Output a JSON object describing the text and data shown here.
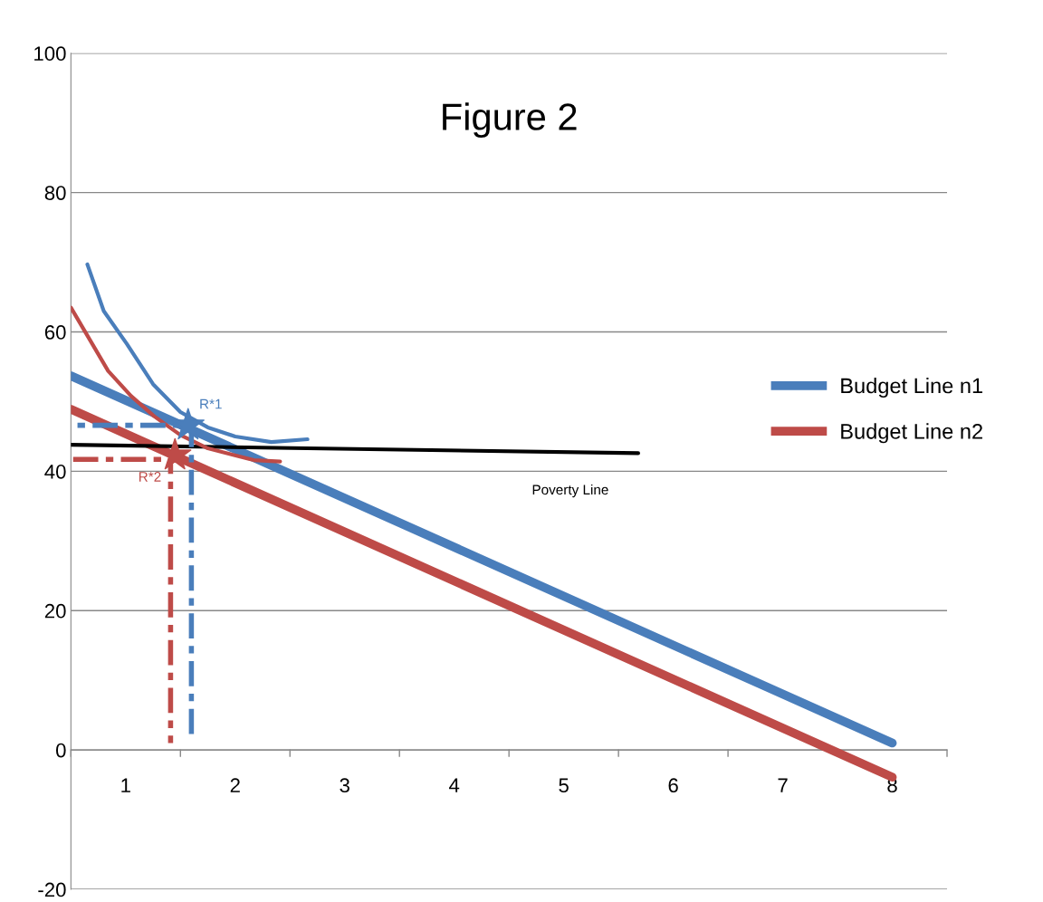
{
  "chart_data": {
    "type": "line",
    "title": "Figure 2",
    "series": [
      {
        "name": "Budget Line n1",
        "color": "#4a7ebb",
        "x": [
          0.5,
          8
        ],
        "values": [
          53.7,
          1.0
        ]
      },
      {
        "name": "Budget Line n2",
        "color": "#be4b48",
        "x": [
          0.5,
          8
        ],
        "values": [
          48.9,
          -3.9
        ]
      },
      {
        "color": "#000000",
        "x": [
          0.5,
          5.68
        ],
        "values": [
          43.8,
          42.6
        ]
      },
      {
        "color": "#4a7ebb",
        "x": [
          0.65,
          0.8,
          1.01,
          1.25,
          1.5,
          1.75,
          2.0,
          2.33,
          2.66
        ],
        "values": [
          69.7,
          63.0,
          58.3,
          52.5,
          48.5,
          46.3,
          45.0,
          44.2,
          44.6
        ]
      },
      {
        "color": "#be4b48",
        "x": [
          0.5,
          0.84,
          1.05,
          1.26,
          1.5,
          1.75,
          2.17,
          2.41
        ],
        "values": [
          63.5,
          54.4,
          50.8,
          47.9,
          45.2,
          43.3,
          41.6,
          41.4
        ]
      },
      {
        "color": "#4a7ebb",
        "line_style": "dashed",
        "x": [
          1.6,
          1.6,
          1.57,
          0.5
        ],
        "values": [
          2.3,
          46.6,
          46.6,
          46.6
        ]
      },
      {
        "color": "#be4b48",
        "line_style": "dashed",
        "x": [
          0.52,
          1.45,
          1.41,
          1.41
        ],
        "values": [
          41.7,
          41.7,
          41.7,
          1.0
        ]
      },
      {
        "type": "scatter",
        "marker": "star",
        "color": "#4a7ebb",
        "x": [
          1.57
        ],
        "values": [
          46.6
        ]
      },
      {
        "type": "scatter",
        "marker": "star",
        "color": "#be4b48",
        "x": [
          1.45
        ],
        "values": [
          42.3
        ]
      }
    ],
    "annotations": [
      {
        "text": "R*1",
        "x": 1.57,
        "y": 46.6
      },
      {
        "text": "R*2",
        "x": 1.45,
        "y": 42.3
      },
      {
        "text": "Poverty Line",
        "x": 5.06,
        "y": 42.6
      }
    ],
    "xlim": [
      0.5,
      8.5
    ],
    "xticks": [
      1,
      2,
      3,
      4,
      5,
      6,
      7,
      8
    ],
    "ylim": [
      -20,
      100
    ],
    "yticks": [
      -20,
      0,
      20,
      40,
      60,
      80,
      100
    ],
    "grid": "y",
    "legend": "right"
  }
}
